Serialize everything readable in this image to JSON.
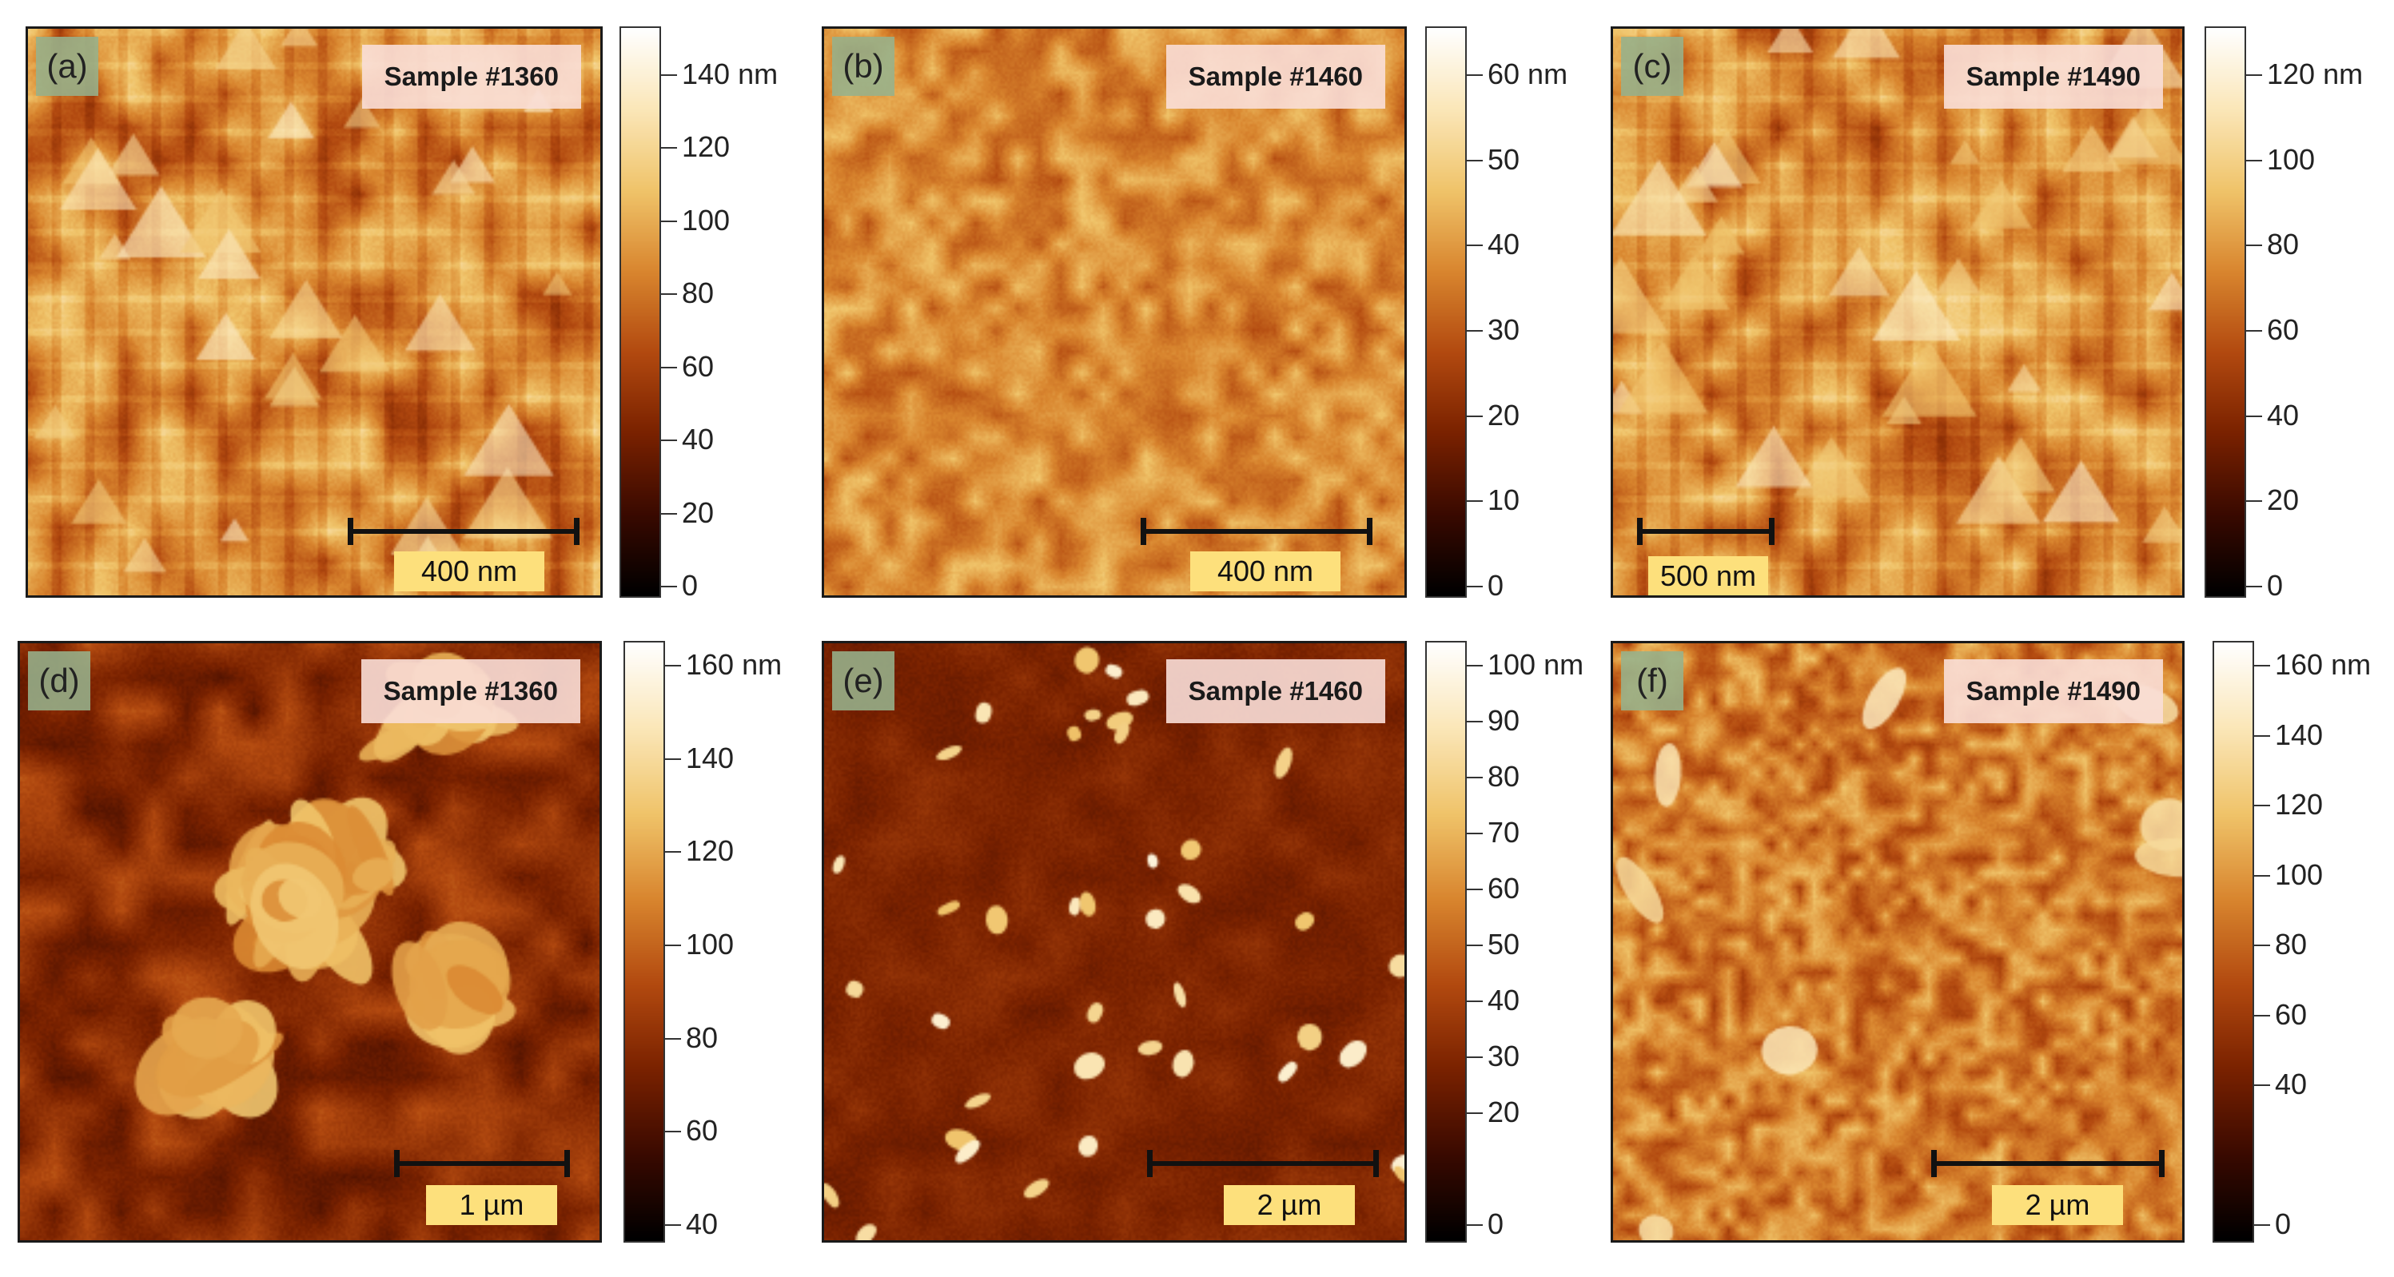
{
  "panels": [
    {
      "letter": "(a)",
      "sample": "Sample #1360",
      "scale": "400 nm",
      "colorbar": {
        "max": 140,
        "unit": "nm",
        "ticks": [
          0,
          20,
          40,
          60,
          80,
          100,
          120,
          140
        ]
      },
      "texture": "grains",
      "seed": 11
    },
    {
      "letter": "(b)",
      "sample": "Sample #1460",
      "scale": "400 nm",
      "colorbar": {
        "max": 60,
        "unit": "nm",
        "ticks": [
          0,
          10,
          20,
          30,
          40,
          50,
          60
        ]
      },
      "texture": "bumps",
      "seed": 23
    },
    {
      "letter": "(c)",
      "sample": "Sample #1490",
      "scale": "500 nm",
      "colorbar": {
        "max": 120,
        "unit": "nm",
        "ticks": [
          0,
          20,
          40,
          60,
          80,
          100,
          120
        ]
      },
      "texture": "grains",
      "seed": 37
    },
    {
      "letter": "(d)",
      "sample": "Sample #1360",
      "scale": "1 µm",
      "colorbar": {
        "max": 160,
        "unit": "nm",
        "ticks": [
          40,
          60,
          80,
          100,
          120,
          140,
          160
        ]
      },
      "texture": "dark-islands",
      "seed": 41
    },
    {
      "letter": "(e)",
      "sample": "Sample #1460",
      "scale": "2 µm",
      "colorbar": {
        "max": 100,
        "unit": "nm",
        "ticks": [
          0,
          20,
          30,
          40,
          50,
          60,
          70,
          80,
          90,
          100
        ]
      },
      "texture": "dark-speckles",
      "seed": 53
    },
    {
      "letter": "(f)",
      "sample": "Sample #1490",
      "scale": "2 µm",
      "colorbar": {
        "max": 160,
        "unit": "nm",
        "ticks": [
          0,
          40,
          60,
          80,
          100,
          120,
          140,
          160
        ]
      },
      "texture": "fine",
      "seed": 67
    }
  ],
  "colormap": [
    "#000000",
    "#3a0a00",
    "#7a2200",
    "#b34a10",
    "#d9862f",
    "#f0c46a",
    "#fbe7b8",
    "#ffffff"
  ]
}
